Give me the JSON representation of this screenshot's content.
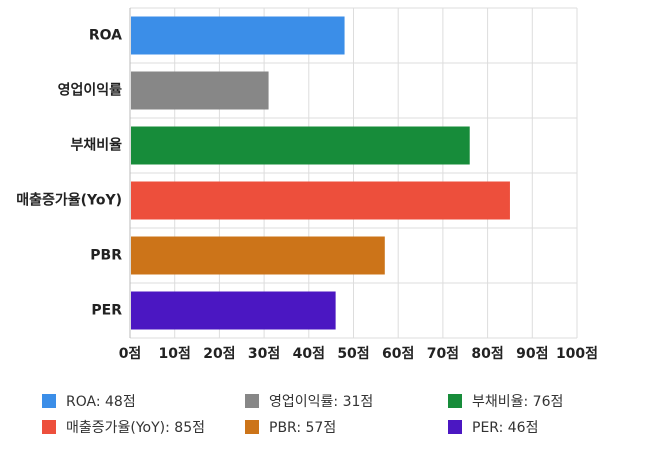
{
  "chart_data": {
    "type": "bar",
    "orientation": "horizontal",
    "categories": [
      "ROA",
      "영업이익률",
      "부채비율",
      "매출증가율(YoY)",
      "PBR",
      "PER"
    ],
    "values": [
      48,
      31,
      76,
      85,
      57,
      46
    ],
    "value_unit": "점",
    "colors": [
      "#3b8ee8",
      "#878787",
      "#178c3a",
      "#ed4f3c",
      "#cc7419",
      "#4b17c2"
    ],
    "xlim": [
      0,
      100
    ],
    "xticks": [
      0,
      10,
      20,
      30,
      40,
      50,
      60,
      70,
      80,
      90,
      100
    ],
    "xtick_labels": [
      "0점",
      "10점",
      "20점",
      "30점",
      "40점",
      "50점",
      "60점",
      "70점",
      "80점",
      "90점",
      "100점"
    ],
    "grid": true,
    "legend_position": "bottom",
    "legend_labels": [
      "ROA: 48점",
      "영업이익률: 31점",
      "부채비율: 76점",
      "매출증가율(YoY): 85점",
      "PBR: 57점",
      "PER: 46점"
    ],
    "title": "",
    "xlabel": "",
    "ylabel": ""
  }
}
